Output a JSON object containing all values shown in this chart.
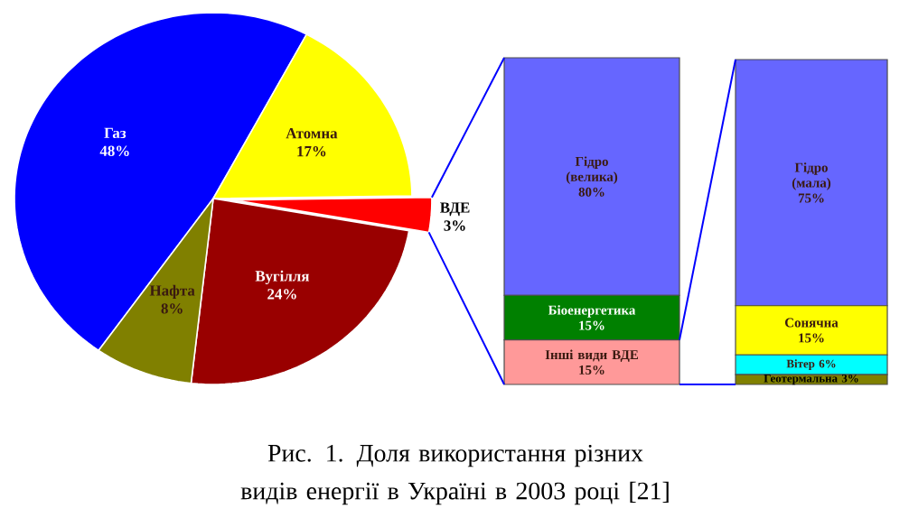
{
  "chart_data": [
    {
      "type": "pie",
      "categories": [
        "Газ",
        "Атомна",
        "ВДЕ",
        "Вугілля",
        "Нафта"
      ],
      "values": [
        48,
        17,
        3,
        24,
        8
      ],
      "value_labels": [
        "48%",
        "17%",
        "3%",
        "24%",
        "8%"
      ],
      "colors": [
        "#0000ff",
        "#ffff00",
        "#ff0000",
        "#990000",
        "#808000"
      ],
      "annotations": [
        "Рис. 1. Доля використання різних видів енергії в Україні в 2003 році [21]"
      ]
    },
    {
      "type": "bar",
      "stacked": true,
      "categories": [
        null
      ],
      "series": [
        {
          "name": "Інші види ВДЕ",
          "color": "#ff9999",
          "values": [
            15
          ],
          "value_labels": [
            "15%"
          ]
        },
        {
          "name": "Біоенергетика",
          "color": "#008000",
          "values": [
            15
          ],
          "value_labels": [
            "15%"
          ]
        },
        {
          "name": "Гідро (велика)",
          "color": "#6666ff",
          "values": [
            80
          ],
          "value_labels": [
            "80%"
          ]
        }
      ]
    },
    {
      "type": "bar",
      "stacked": true,
      "categories": [
        null
      ],
      "series": [
        {
          "name": "Геотермальна",
          "color": "#808000",
          "values": [
            3
          ],
          "value_labels": [
            "3%"
          ]
        },
        {
          "name": "Вітер",
          "color": "#00ffff",
          "values": [
            6
          ],
          "value_labels": [
            "6%"
          ]
        },
        {
          "name": "Сонячна",
          "color": "#ffff00",
          "values": [
            15
          ],
          "value_labels": [
            "15%"
          ]
        },
        {
          "name": "Гідро (мала)",
          "color": "#6666ff",
          "values": [
            75
          ],
          "value_labels": [
            "75%"
          ]
        }
      ]
    }
  ]
}
